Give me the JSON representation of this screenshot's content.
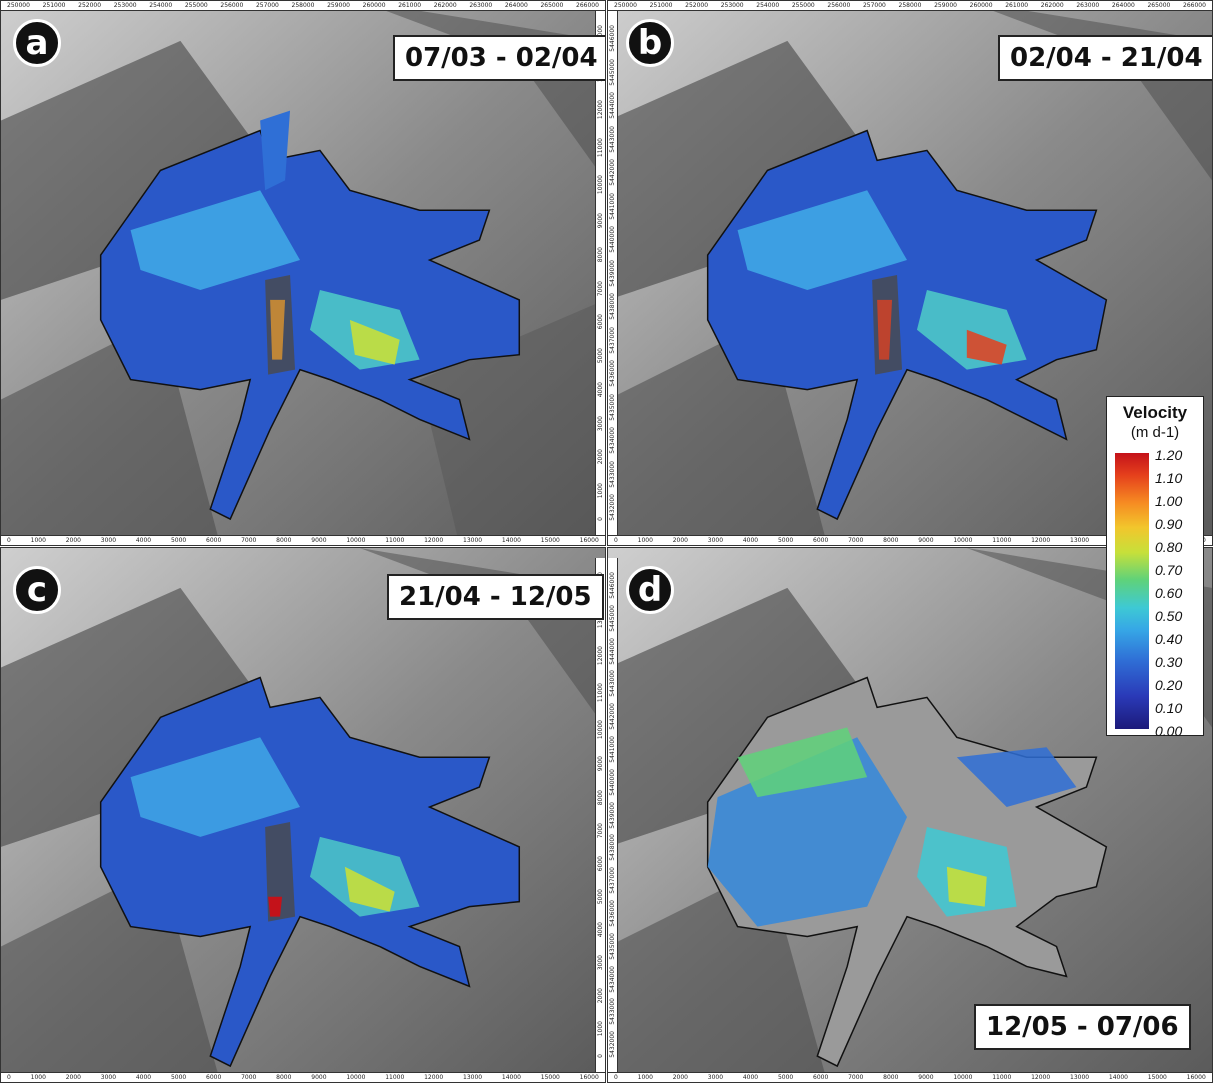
{
  "panels": [
    {
      "letter": "a",
      "date": "07/03 - 02/04"
    },
    {
      "letter": "b",
      "date": "02/04 - 21/04"
    },
    {
      "letter": "c",
      "date": "21/04 - 12/05"
    },
    {
      "letter": "d",
      "date": "12/05 - 07/06"
    }
  ],
  "axes": {
    "top_ticks": [
      "250000",
      "251000",
      "252000",
      "253000",
      "254000",
      "255000",
      "256000",
      "257000",
      "258000",
      "259000",
      "260000",
      "261000",
      "262000",
      "263000",
      "264000",
      "265000",
      "266000"
    ],
    "bottom_ticks": [
      "0",
      "1000",
      "2000",
      "3000",
      "4000",
      "5000",
      "6000",
      "7000",
      "8000",
      "9000",
      "10000",
      "11000",
      "12000",
      "13000",
      "14000",
      "15000",
      "16000"
    ],
    "left_ticks": [
      "5446000",
      "5445000",
      "5444000",
      "5443000",
      "5442000",
      "5441000",
      "5440000",
      "5439000",
      "5438000",
      "5437000",
      "5436000",
      "5435000",
      "5434000",
      "5433000",
      "5432000"
    ],
    "right_ticks": [
      "14000",
      "13000",
      "12000",
      "11000",
      "10000",
      "9000",
      "8000",
      "7000",
      "6000",
      "5000",
      "4000",
      "3000",
      "2000",
      "1000",
      "0"
    ]
  },
  "legend": {
    "title": "Velocity",
    "unit": "(m d-1)",
    "ticks": [
      "1.20",
      "1.10",
      "1.00",
      "0.90",
      "0.80",
      "0.70",
      "0.60",
      "0.50",
      "0.40",
      "0.30",
      "0.20",
      "0.10",
      "0.00"
    ],
    "colors": {
      "low": "#1c1a7a",
      "mid": "#3ec9d4",
      "high": "#c4121a"
    }
  }
}
